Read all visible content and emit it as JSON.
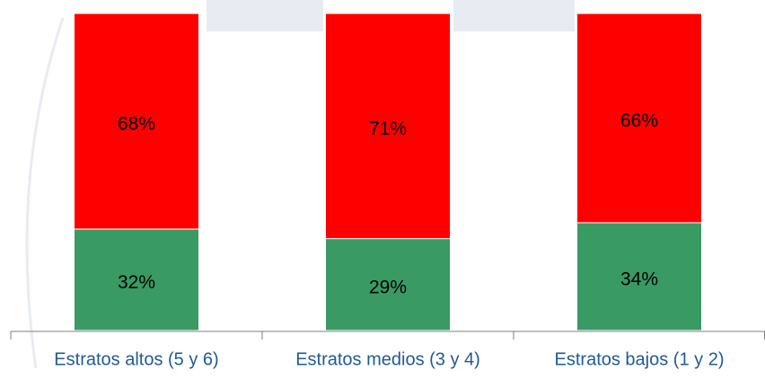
{
  "chart_data": {
    "type": "stacked_bar",
    "categories": [
      "Estratos altos (5 y 6)",
      "Estratos medios (3 y 4)",
      "Estratos bajos (1 y 2)"
    ],
    "series": [
      {
        "color": "#3a9a64",
        "values": [
          32,
          29,
          34
        ],
        "value_labels": [
          "32%",
          "29%",
          "34%"
        ]
      },
      {
        "color": "#ff0000",
        "values": [
          68,
          71,
          66
        ],
        "value_labels": [
          "68%",
          "71%",
          "66%"
        ]
      }
    ],
    "ylim": [
      0,
      100
    ]
  }
}
